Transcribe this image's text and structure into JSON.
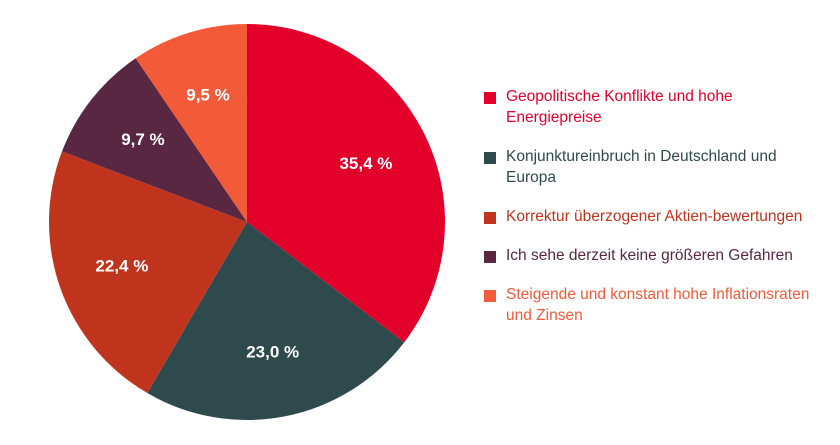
{
  "chart_data": {
    "type": "pie",
    "title": "",
    "legend_position": "right",
    "slices": [
      {
        "label": "Geopolitische Konflikte und hohe Energiepreise",
        "value": 35.4,
        "value_label": "35,4 %",
        "color": "#E2002A"
      },
      {
        "label": "Konjunktureinbruch in Deutschland und Europa",
        "value": 23.0,
        "value_label": "23,0 %",
        "color": "#2F4A4C"
      },
      {
        "label": "Korrektur überzogener Aktien-bewertungen",
        "value": 22.4,
        "value_label": "22,4 %",
        "color": "#C0341D"
      },
      {
        "label": "Ich sehe derzeit keine größeren Gefahren",
        "value": 9.7,
        "value_label": "9,7 %",
        "color": "#5A2742"
      },
      {
        "label": "Steigende und konstant hohe Inflationsraten und Zinsen",
        "value": 9.5,
        "value_label": "9,5 %",
        "color": "#F25A38"
      }
    ]
  }
}
